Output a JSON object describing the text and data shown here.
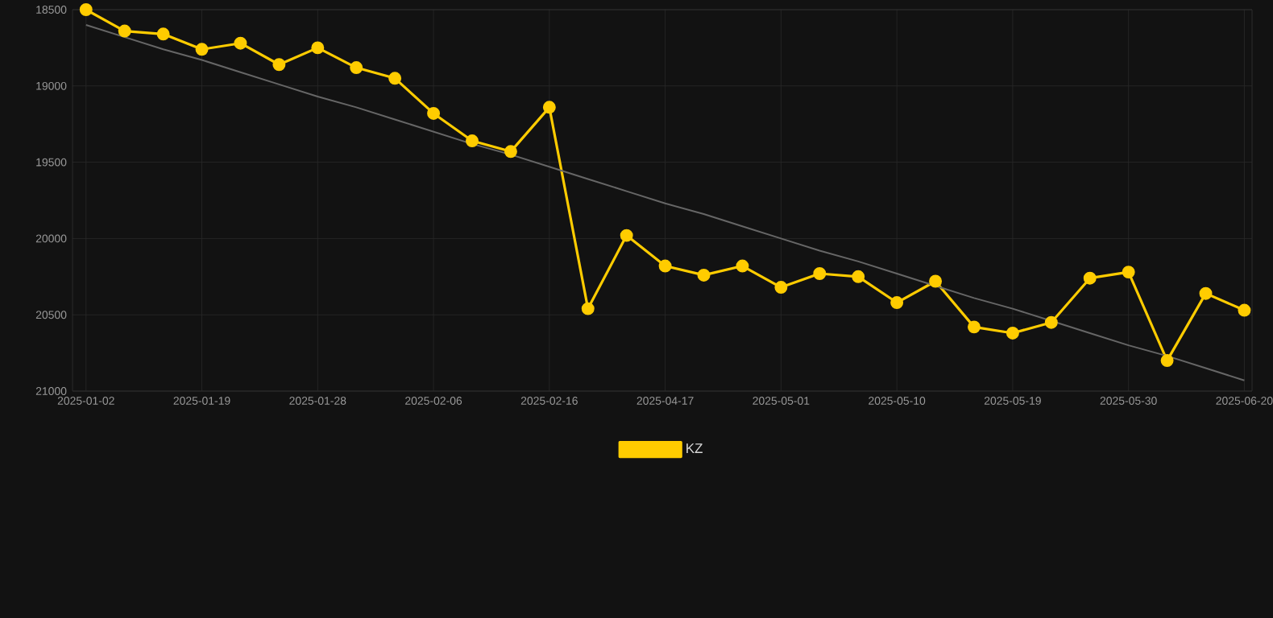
{
  "chart_data": {
    "type": "line",
    "categories": [
      "2025-01-02",
      null,
      null,
      "2025-01-19",
      null,
      null,
      "2025-01-28",
      null,
      null,
      "2025-02-06",
      null,
      null,
      "2025-02-16",
      null,
      null,
      "2025-04-17",
      null,
      null,
      "2025-05-01",
      null,
      null,
      "2025-05-10",
      null,
      null,
      "2025-05-19",
      null,
      null,
      "2025-05-30",
      null,
      null,
      "2025-06-20"
    ],
    "series": [
      {
        "name": "KZ",
        "color": "#ffcc00",
        "marker": "circle",
        "values": [
          18500,
          18640,
          18660,
          18760,
          18720,
          18860,
          18750,
          18880,
          18950,
          19180,
          19360,
          19430,
          19140,
          20460,
          19980,
          20180,
          20240,
          20180,
          20320,
          20230,
          20250,
          20420,
          20280,
          20580,
          20620,
          20550,
          20260,
          20220,
          20800,
          20360,
          20470
        ]
      },
      {
        "type": "line",
        "color": "#666666",
        "marker": "none",
        "values": [
          18600,
          18680,
          18760,
          18830,
          18910,
          18990,
          19070,
          19140,
          19220,
          19300,
          19380,
          19450,
          19530,
          19610,
          19690,
          19770,
          19840,
          19920,
          20000,
          20080,
          20150,
          20230,
          20310,
          20390,
          20460,
          20540,
          20620,
          20700,
          20770,
          20850,
          20930
        ]
      }
    ],
    "ylim": [
      21000,
      18500
    ],
    "yticks": [
      18500,
      19000,
      19500,
      20000,
      20500,
      21000
    ],
    "grid": true,
    "legend": "bottom"
  }
}
